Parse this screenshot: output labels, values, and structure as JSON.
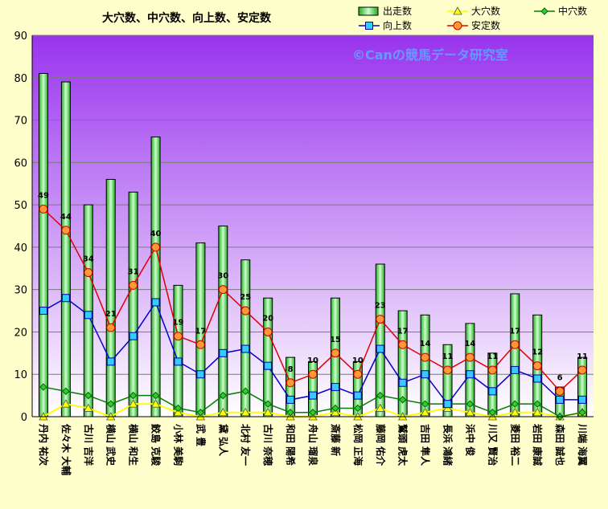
{
  "chart_data": {
    "type": "bar",
    "title": "大穴数、中穴数、向上数、安定数",
    "watermark": "©Canの競馬データ研究室",
    "categories": [
      "丹内 祐次",
      "佐々木 大輔",
      "古川 吉洋",
      "横山 武史",
      "横山 和生",
      "鮫島 克駿",
      "小林 美駒",
      "武 豊",
      "黛 弘人",
      "北村 友一",
      "古川 奈穂",
      "和田 陽希",
      "舟山 瑠泉",
      "斎藤 新",
      "松岡 正海",
      "藤岡 佑介",
      "鷲頭 虎太",
      "吉田 隼人",
      "長浜 鴻緒",
      "浜中 俊",
      "川又 賢治",
      "菱田 裕二",
      "岩田 康誠",
      "森田 誠也",
      "川端 海翼"
    ],
    "ylim": [
      0,
      90
    ],
    "yticks": [
      0,
      10,
      20,
      30,
      40,
      50,
      60,
      70,
      80,
      90
    ],
    "grid": true,
    "legend_position": "top-right",
    "series": [
      {
        "name": "出走数",
        "kind": "bar",
        "color": "#4caf50",
        "values": [
          81,
          79,
          50,
          56,
          53,
          66,
          31,
          41,
          45,
          37,
          28,
          14,
          13,
          28,
          13,
          36,
          25,
          24,
          17,
          22,
          15,
          29,
          24,
          7,
          14
        ]
      },
      {
        "name": "大穴数",
        "kind": "line",
        "color": "#ffff00",
        "values": [
          0,
          3,
          2,
          0,
          3,
          3,
          1,
          0,
          1,
          1,
          1,
          0,
          0,
          1,
          0,
          2,
          0,
          1,
          2,
          1,
          0,
          1,
          1,
          0,
          1
        ]
      },
      {
        "name": "中穴数",
        "kind": "line",
        "color": "#008000",
        "values": [
          7,
          6,
          5,
          3,
          5,
          5,
          2,
          1,
          5,
          6,
          3,
          1,
          1,
          2,
          2,
          5,
          4,
          3,
          3,
          3,
          1,
          3,
          3,
          0,
          1
        ]
      },
      {
        "name": "向上数",
        "kind": "line",
        "color": "#0000cc",
        "values": [
          25,
          28,
          24,
          13,
          19,
          27,
          13,
          10,
          15,
          16,
          12,
          4,
          5,
          7,
          5,
          16,
          8,
          10,
          3,
          10,
          6,
          11,
          9,
          4,
          4
        ]
      },
      {
        "name": "安定数",
        "kind": "line",
        "color": "#e00000",
        "values": [
          49,
          44,
          34,
          21,
          31,
          40,
          19,
          17,
          30,
          25,
          20,
          8,
          10,
          15,
          10,
          23,
          17,
          14,
          11,
          14,
          11,
          17,
          12,
          6,
          11
        ]
      }
    ],
    "data_labels_series": "安定数"
  }
}
